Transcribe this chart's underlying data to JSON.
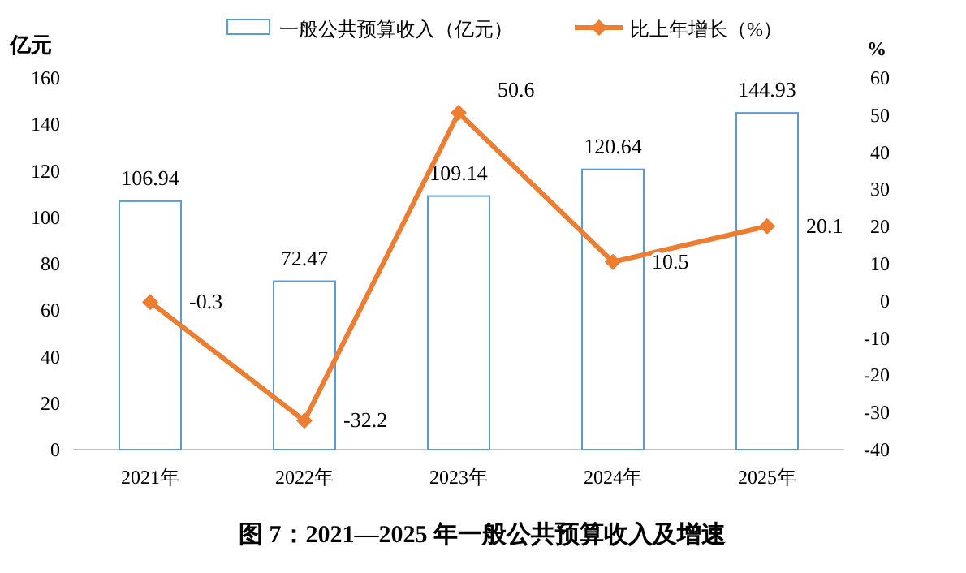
{
  "chart_data": {
    "type": "bar",
    "title": "图 7：2021—2025 年一般公共预算收入及增速",
    "ylabel": "亿元",
    "y2label": "%",
    "categories": [
      "2021年",
      "2022年",
      "2023年",
      "2024年",
      "2025年"
    ],
    "series": [
      {
        "name": "一般公共预算收入（亿元）",
        "color": "#5b9bd5",
        "values": [
          106.94,
          72.47,
          109.14,
          120.64,
          144.93
        ]
      },
      {
        "name": "比上年增长（%）",
        "type": "line",
        "axis": "y2",
        "color": "#ed7d31",
        "marker": "diamond",
        "values": [
          -0.3,
          -32.2,
          50.6,
          10.5,
          20.1
        ]
      }
    ],
    "ylim": [
      0,
      160
    ],
    "yticks": [
      0,
      20,
      40,
      60,
      80,
      100,
      120,
      140,
      160
    ],
    "y2lim": [
      -40,
      60
    ],
    "y2ticks": [
      -40,
      -30,
      -20,
      -10,
      0,
      10,
      20,
      30,
      40,
      50,
      60
    ],
    "data_labels": true,
    "legend": "top",
    "grid": false
  }
}
